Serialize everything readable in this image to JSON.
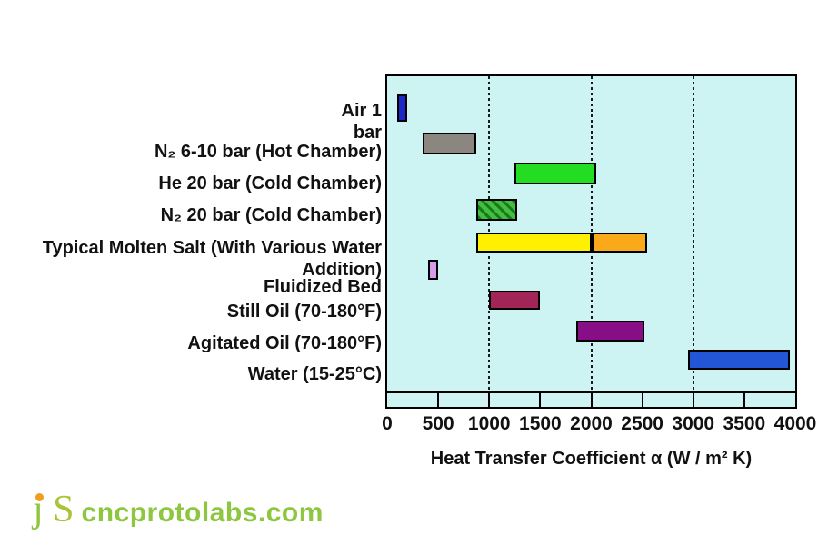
{
  "chart_data": {
    "type": "bar",
    "orientation": "horizontal-range",
    "title": "",
    "xlabel": "Heat Transfer Coefficient α  (W / m² K)",
    "ylabel": "",
    "xlim": [
      0,
      4000
    ],
    "x_ticks": [
      0,
      500,
      1000,
      1500,
      2000,
      2500,
      3000,
      3500,
      4000
    ],
    "gridlines_x": [
      1000,
      2000,
      3000
    ],
    "strip_ticks": [
      500,
      1000,
      1500,
      2000,
      2500,
      3000,
      3500
    ],
    "grid_style": "dotted-vertical",
    "plot_background": "#cdf3f3",
    "rows": [
      {
        "label": "Air 1 bar",
        "label_lines": [
          "Air 1",
          "bar"
        ],
        "segments": [
          {
            "min": 100,
            "max": 200,
            "color": "#1c28c8"
          }
        ]
      },
      {
        "label": "N₂ 6-10 bar (Hot Chamber)",
        "label_lines": [
          "N₂ 6-10 bar (Hot Chamber)"
        ],
        "segments": [
          {
            "min": 350,
            "max": 875,
            "color": "#8b8680"
          }
        ]
      },
      {
        "label": "He 20 bar (Cold Chamber)",
        "label_lines": [
          "He 20 bar (Cold Chamber)"
        ],
        "segments": [
          {
            "min": 1250,
            "max": 2050,
            "color": "#22dd22"
          }
        ]
      },
      {
        "label": "N₂ 20 bar (Cold Chamber)",
        "label_lines": [
          "N₂  20 bar (Cold Chamber)"
        ],
        "segments": [
          {
            "min": 875,
            "max": 1275,
            "color": "#3fc13f",
            "hatch": true
          }
        ]
      },
      {
        "label": "Typical Molten Salt (With Various Water Addition)",
        "label_lines": [
          "Typical Molten Salt (With Various Water",
          "Addition)"
        ],
        "segments": [
          {
            "min": 875,
            "max": 2000,
            "color": "#fff000"
          },
          {
            "min": 2000,
            "max": 2550,
            "color": "#f9a91a"
          }
        ]
      },
      {
        "label": "Fluidized Bed",
        "label_lines": [
          "Fluidized Bed"
        ],
        "segments": [
          {
            "min": 400,
            "max": 500,
            "color": "#d79ce8"
          }
        ]
      },
      {
        "label": "Still Oil (70-180°F)",
        "label_lines": [
          "Still Oil (70-180°F)"
        ],
        "segments": [
          {
            "min": 1000,
            "max": 1500,
            "color": "#a22557"
          }
        ]
      },
      {
        "label": "Agitated Oil (70-180°F)",
        "label_lines": [
          "Agitated Oil (70-180°F)"
        ],
        "segments": [
          {
            "min": 1850,
            "max": 2525,
            "color": "#870e87"
          }
        ]
      },
      {
        "label": "Water (15-25°C)",
        "label_lines": [
          "Water (15-25°C)"
        ],
        "segments": [
          {
            "min": 2950,
            "max": 3950,
            "color": "#2256d6"
          }
        ]
      }
    ]
  },
  "axis": {
    "title": "Heat Transfer Coefficient α  (W / m² K)"
  },
  "footer": {
    "logo_j": "ȷ",
    "logo_s": "S",
    "logo_domain": "cncprotolabs.com",
    "logo_green": "#8dc63f",
    "logo_dot_orange": "#f09e1e"
  },
  "colors": {
    "plot_background": "#cdf3f3",
    "border": "#000000",
    "text": "#111111"
  }
}
